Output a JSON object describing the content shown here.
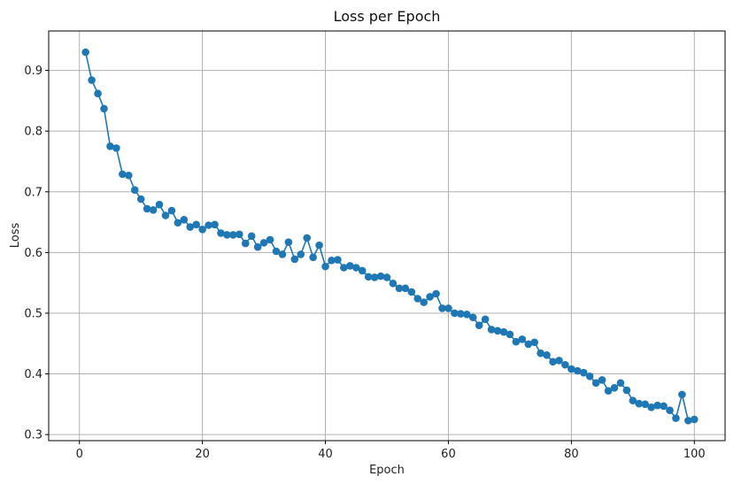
{
  "chart_data": {
    "type": "line",
    "title": "Loss per Epoch",
    "xlabel": "Epoch",
    "ylabel": "Loss",
    "xlim": [
      -5,
      105
    ],
    "ylim": [
      0.29,
      0.965
    ],
    "xticks": [
      0,
      20,
      40,
      60,
      80,
      100
    ],
    "yticks": [
      0.3,
      0.4,
      0.5,
      0.6,
      0.7,
      0.8,
      0.9
    ],
    "xtick_labels": [
      "0",
      "20",
      "40",
      "60",
      "80",
      "100"
    ],
    "ytick_labels": [
      "0.3",
      "0.4",
      "0.5",
      "0.6",
      "0.7",
      "0.8",
      "0.9"
    ],
    "grid": true,
    "marker": "circle",
    "colors": {
      "series": "#1f77b4",
      "grid": "#b0b0b0"
    },
    "x": [
      1,
      2,
      3,
      4,
      5,
      6,
      7,
      8,
      9,
      10,
      11,
      12,
      13,
      14,
      15,
      16,
      17,
      18,
      19,
      20,
      21,
      22,
      23,
      24,
      25,
      26,
      27,
      28,
      29,
      30,
      31,
      32,
      33,
      34,
      35,
      36,
      37,
      38,
      39,
      40,
      41,
      42,
      43,
      44,
      45,
      46,
      47,
      48,
      49,
      50,
      51,
      52,
      53,
      54,
      55,
      56,
      57,
      58,
      59,
      60,
      61,
      62,
      63,
      64,
      65,
      66,
      67,
      68,
      69,
      70,
      71,
      72,
      73,
      74,
      75,
      76,
      77,
      78,
      79,
      80,
      81,
      82,
      83,
      84,
      85,
      86,
      87,
      88,
      89,
      90,
      91,
      92,
      93,
      94,
      95,
      96,
      97,
      98,
      99,
      100
    ],
    "series": [
      {
        "values": [
          0.93,
          0.884,
          0.862,
          0.837,
          0.775,
          0.772,
          0.729,
          0.727,
          0.703,
          0.688,
          0.672,
          0.67,
          0.679,
          0.661,
          0.669,
          0.649,
          0.654,
          0.642,
          0.646,
          0.638,
          0.645,
          0.646,
          0.632,
          0.629,
          0.629,
          0.63,
          0.615,
          0.627,
          0.609,
          0.616,
          0.621,
          0.602,
          0.597,
          0.617,
          0.589,
          0.597,
          0.624,
          0.592,
          0.612,
          0.577,
          0.587,
          0.588,
          0.575,
          0.578,
          0.575,
          0.57,
          0.56,
          0.559,
          0.561,
          0.559,
          0.549,
          0.541,
          0.541,
          0.535,
          0.524,
          0.518,
          0.527,
          0.532,
          0.508,
          0.508,
          0.5,
          0.499,
          0.498,
          0.493,
          0.48,
          0.49,
          0.473,
          0.471,
          0.469,
          0.465,
          0.453,
          0.457,
          0.449,
          0.452,
          0.434,
          0.431,
          0.42,
          0.422,
          0.415,
          0.408,
          0.405,
          0.402,
          0.396,
          0.385,
          0.39,
          0.372,
          0.377,
          0.385,
          0.373,
          0.356,
          0.351,
          0.35,
          0.345,
          0.348,
          0.347,
          0.34,
          0.327,
          0.366,
          0.323,
          0.325
        ]
      }
    ]
  }
}
